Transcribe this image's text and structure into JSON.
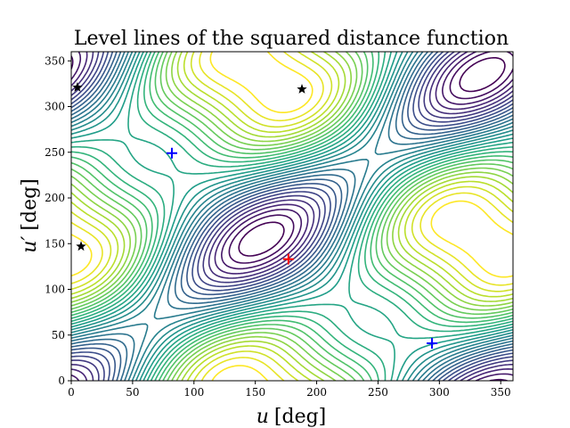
{
  "chart_data": {
    "type": "contour",
    "title": "Level lines of the squared distance function",
    "xlabel_var": "u",
    "xlabel_unit": "[deg]",
    "ylabel_var": "u′",
    "ylabel_unit": "[deg]",
    "xlim": [
      0,
      360
    ],
    "ylim": [
      0,
      360
    ],
    "xticks": [
      0,
      50,
      100,
      150,
      200,
      250,
      300,
      350
    ],
    "yticks": [
      0,
      50,
      100,
      150,
      200,
      250,
      300,
      350
    ],
    "grid": false,
    "colormap": "viridis",
    "markers": {
      "maximum": {
        "symbol": "+",
        "color": "#ff0000",
        "points": [
          [
            177,
            133
          ]
        ]
      },
      "minima": {
        "symbol": "+",
        "color": "#0000ff",
        "points": [
          [
            82,
            249
          ],
          [
            294,
            41
          ]
        ]
      },
      "saddles": {
        "symbol": "star",
        "color": "#000000",
        "points": [
          [
            5,
            321
          ],
          [
            188,
            319
          ],
          [
            8,
            147
          ]
        ]
      }
    }
  },
  "colors": {
    "viridis": [
      "#440154",
      "#482878",
      "#3e4989",
      "#31688e",
      "#26828e",
      "#1f9e89",
      "#35b779",
      "#6ece58",
      "#b5de2b",
      "#fde725"
    ]
  }
}
